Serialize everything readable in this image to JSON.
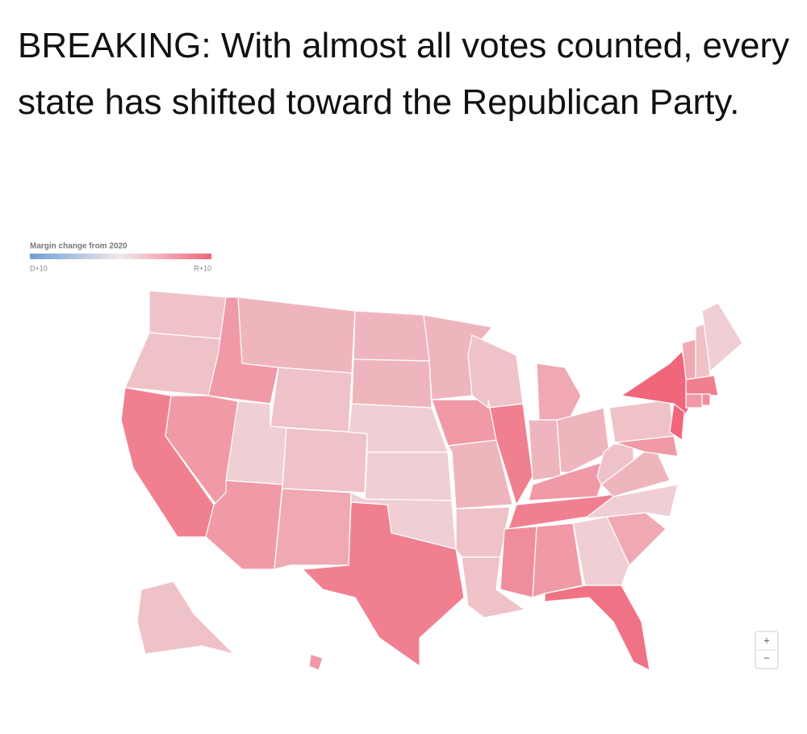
{
  "tweet": {
    "text": "BREAKING: With almost all votes counted, every state has shifted toward the Republican Party."
  },
  "chart_data": {
    "type": "choropleth",
    "title": "Margin change from 2020",
    "scale_ticks": [
      {
        "value": -10,
        "label": "D+10"
      },
      {
        "value": 10,
        "label": "R+10"
      }
    ],
    "colors": [
      "#6f9fd6",
      "#efe9ea",
      "#f0667a"
    ],
    "values": [
      3,
      3,
      8,
      6,
      6,
      4,
      3,
      2,
      6,
      3,
      5,
      4,
      4,
      2,
      2,
      2,
      8,
      4,
      6,
      4,
      3,
      3,
      3,
      8,
      5,
      4,
      4,
      6,
      8,
      7,
      6,
      2,
      9,
      5,
      2,
      4,
      3,
      3,
      10,
      10,
      6,
      5,
      3,
      2,
      8,
      6,
      7,
      3,
      6
    ]
  },
  "zoom_controls": [
    "+",
    "−"
  ]
}
